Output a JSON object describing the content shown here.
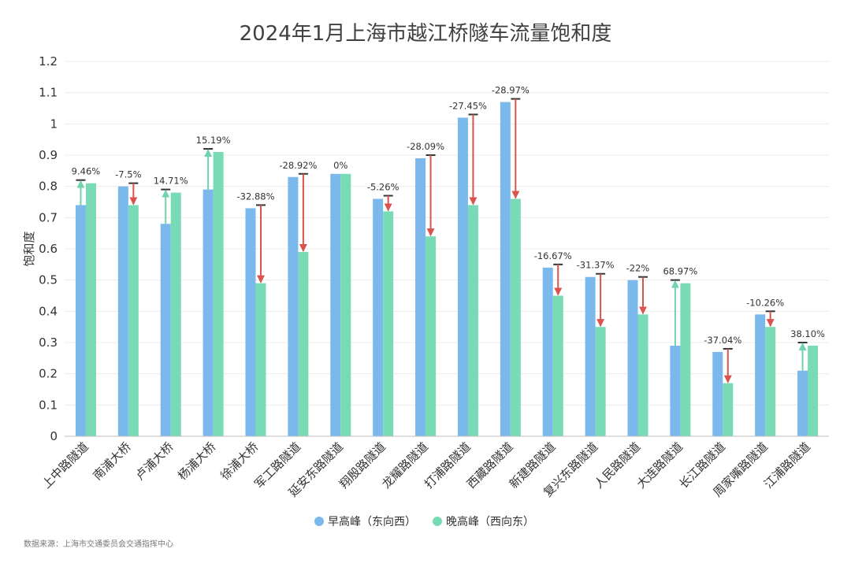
{
  "chart_data": {
    "type": "bar",
    "title": "2024年1月上海市越江桥隧车流量饱和度",
    "ylabel": "饱和度",
    "xlabel": "",
    "ylim": [
      0,
      1.2
    ],
    "yticks": [
      "0",
      "0.1",
      "0.2",
      "0.3",
      "0.4",
      "0.5",
      "0.6",
      "0.7",
      "0.8",
      "0.9",
      "1",
      "1.1",
      "1.2"
    ],
    "grid": true,
    "legend_position": "bottom-center",
    "categories": [
      "上中路隧道",
      "南浦大桥",
      "卢浦大桥",
      "杨浦大桥",
      "徐浦大桥",
      "军工路隧道",
      "延安东路隧道",
      "翔殷路隧道",
      "龙耀路隧道",
      "打浦路隧道",
      "西藏路隧道",
      "新建路隧道",
      "复兴东路隧道",
      "人民路隧道",
      "大连路隧道",
      "长江路隧道",
      "周家嘴路隧道",
      "江浦路隧道"
    ],
    "series": [
      {
        "name": "早高峰（东向西）",
        "color": "#7bb9ec",
        "values": [
          0.74,
          0.8,
          0.68,
          0.79,
          0.73,
          0.83,
          0.84,
          0.76,
          0.89,
          1.02,
          1.07,
          0.54,
          0.51,
          0.5,
          0.29,
          0.27,
          0.39,
          0.21
        ]
      },
      {
        "name": "晚高峰（西向东）",
        "color": "#78dbb6",
        "values": [
          0.81,
          0.74,
          0.78,
          0.91,
          0.49,
          0.59,
          0.84,
          0.72,
          0.64,
          0.74,
          0.76,
          0.45,
          0.35,
          0.39,
          0.49,
          0.17,
          0.35,
          0.29
        ]
      }
    ],
    "change_labels": [
      "9.46%",
      "-7.5%",
      "14.71%",
      "15.19%",
      "-32.88%",
      "-28.92%",
      "0%",
      "-5.26%",
      "-28.09%",
      "-27.45%",
      "-28.97%",
      "-16.67%",
      "-31.37%",
      "-22%",
      "68.97%",
      "-37.04%",
      "-10.26%",
      "38.10%"
    ],
    "colors": {
      "increase_arrow": "#6fd4ad",
      "decrease_arrow": "#d9534f",
      "marker": "#333333"
    }
  },
  "source_note": "数据来源：上海市交通委员会交通指挥中心"
}
